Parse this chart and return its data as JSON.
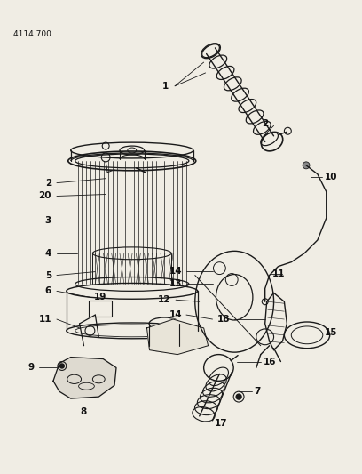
{
  "title": "4114 700",
  "bg_color": "#f0ede4",
  "line_color": "#1a1a1a",
  "text_color": "#111111",
  "fig_width": 4.08,
  "fig_height": 5.33,
  "dpi": 100
}
